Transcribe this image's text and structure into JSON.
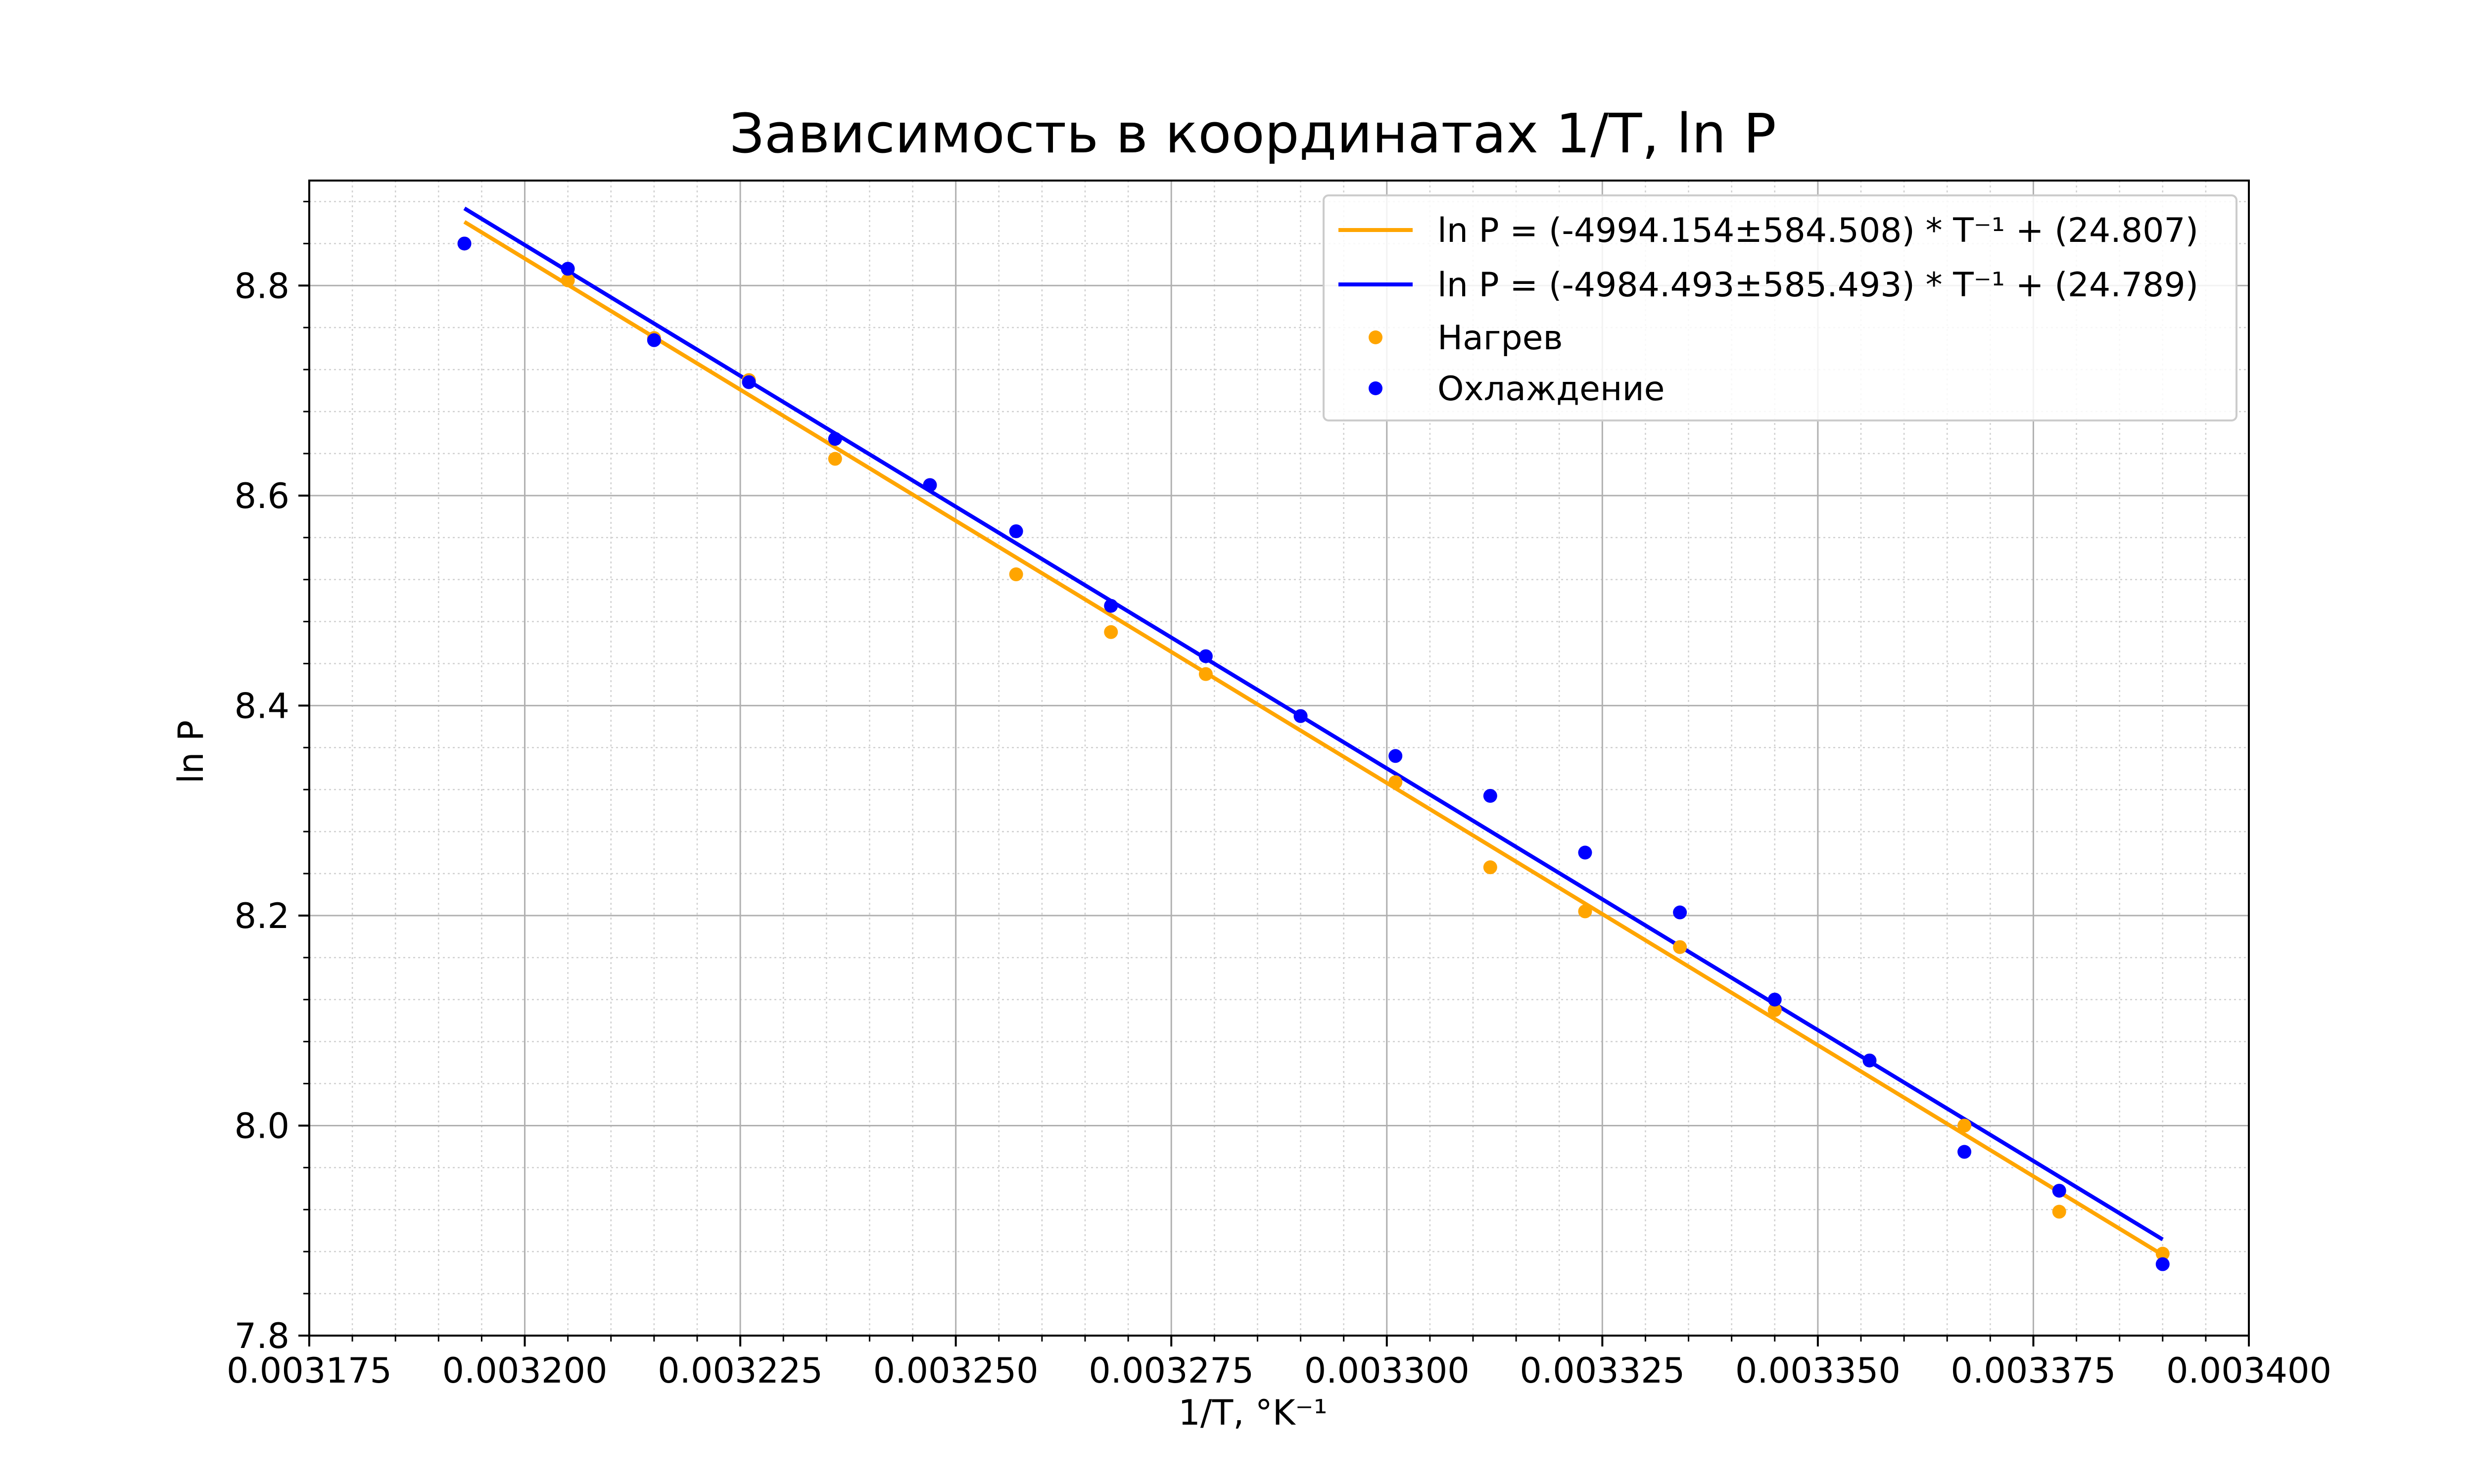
{
  "chart_data": {
    "type": "scatter",
    "title": "Зависимость в координатах 1/T, ln P",
    "xlabel": "1/T, °K⁻¹",
    "ylabel": "ln P",
    "xlim": [
      0.003175,
      0.0034
    ],
    "ylim": [
      7.8,
      8.9
    ],
    "x_ticks": [
      "0.003175",
      "0.003200",
      "0.003225",
      "0.003250",
      "0.003275",
      "0.003300",
      "0.003325",
      "0.003350",
      "0.003375",
      "0.003400"
    ],
    "y_ticks": [
      "7.8",
      "8.0",
      "8.2",
      "8.4",
      "8.6",
      "8.8"
    ],
    "grid": true,
    "minor_grid": true,
    "legend_position": "top-right",
    "series": [
      {
        "name": "Нагрев",
        "kind": "scatter",
        "color": "#FFA500",
        "x": [
          0.003193,
          0.003205,
          0.003215,
          0.003226,
          0.003236,
          0.003247,
          0.003257,
          0.003268,
          0.003279,
          0.00329,
          0.003301,
          0.003312,
          0.003323,
          0.003334,
          0.003345,
          0.003356,
          0.003367,
          0.003378,
          0.00339
        ],
        "y": [
          8.84,
          8.805,
          8.75,
          8.71,
          8.635,
          8.61,
          8.525,
          8.47,
          8.43,
          8.39,
          8.327,
          8.246,
          8.204,
          8.17,
          8.11,
          8.062,
          8.0,
          7.918,
          7.878
        ]
      },
      {
        "name": "Охлаждение",
        "kind": "scatter",
        "color": "#0000FF",
        "x": [
          0.003193,
          0.003205,
          0.003215,
          0.003226,
          0.003236,
          0.003247,
          0.003257,
          0.003268,
          0.003279,
          0.00329,
          0.003301,
          0.003312,
          0.003323,
          0.003334,
          0.003345,
          0.003356,
          0.003367,
          0.003378,
          0.00339
        ],
        "y": [
          8.84,
          8.816,
          8.748,
          8.708,
          8.654,
          8.61,
          8.566,
          8.495,
          8.447,
          8.39,
          8.352,
          8.314,
          8.26,
          8.203,
          8.12,
          8.062,
          7.975,
          7.938,
          7.868
        ]
      }
    ],
    "fits": [
      {
        "name": "ln P = (-4994.154±584.508) * T⁻¹ + (24.807)",
        "color": "#FFA500",
        "slope": -4994.154,
        "slope_err": 584.508,
        "intercept": 24.807,
        "x_range": [
          0.003193,
          0.00339
        ]
      },
      {
        "name": "ln P = (-4984.493±585.493) * T⁻¹ + (24.789)",
        "color": "#0000FF",
        "slope": -4984.493,
        "slope_err": 585.493,
        "intercept": 24.789,
        "x_range": [
          0.003193,
          0.00339
        ]
      }
    ]
  }
}
